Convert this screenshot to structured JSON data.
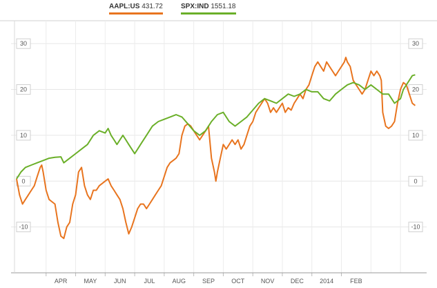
{
  "legend": [
    {
      "symbol": "AAPL:US",
      "value": "431.72",
      "color": "#e8741e"
    },
    {
      "symbol": "SPX:IND",
      "value": "1551.18",
      "color": "#6aaf28"
    }
  ],
  "chart_data": {
    "type": "line",
    "title": "",
    "xlabel": "",
    "ylabel": "",
    "x_axis_labels": [
      "APR",
      "MAY",
      "JUN",
      "JUL",
      "AUG",
      "SEP",
      "OCT",
      "NOV",
      "DEC",
      "2014",
      "FEB"
    ],
    "y_ticks": [
      30,
      20,
      10,
      0,
      -10
    ],
    "ylim": [
      -20,
      35
    ],
    "grid": true,
    "legend_position": "top",
    "x_unit": "months elapsed from start of series",
    "series": [
      {
        "name": "AAPL:US",
        "color": "#e8741e",
        "points": [
          [
            0.0,
            0.5
          ],
          [
            0.1,
            -3
          ],
          [
            0.2,
            -5
          ],
          [
            0.3,
            -4
          ],
          [
            0.4,
            -3
          ],
          [
            0.5,
            -2
          ],
          [
            0.6,
            -1
          ],
          [
            0.7,
            1
          ],
          [
            0.8,
            3
          ],
          [
            0.85,
            3.5
          ],
          [
            0.9,
            2
          ],
          [
            1.0,
            -2
          ],
          [
            1.1,
            -4
          ],
          [
            1.2,
            -4.5
          ],
          [
            1.3,
            -5
          ],
          [
            1.4,
            -9
          ],
          [
            1.5,
            -12
          ],
          [
            1.6,
            -12.5
          ],
          [
            1.7,
            -10
          ],
          [
            1.8,
            -9
          ],
          [
            1.9,
            -5
          ],
          [
            2.0,
            -3
          ],
          [
            2.1,
            2
          ],
          [
            2.2,
            3
          ],
          [
            2.3,
            -1
          ],
          [
            2.4,
            -3
          ],
          [
            2.5,
            -4
          ],
          [
            2.6,
            -2
          ],
          [
            2.7,
            -2
          ],
          [
            2.8,
            -1
          ],
          [
            3.0,
            0
          ],
          [
            3.1,
            0.5
          ],
          [
            3.2,
            -1
          ],
          [
            3.3,
            -2
          ],
          [
            3.4,
            -3
          ],
          [
            3.5,
            -4
          ],
          [
            3.6,
            -6
          ],
          [
            3.7,
            -9
          ],
          [
            3.8,
            -11.5
          ],
          [
            3.9,
            -10
          ],
          [
            4.0,
            -8
          ],
          [
            4.1,
            -6
          ],
          [
            4.2,
            -5
          ],
          [
            4.3,
            -5
          ],
          [
            4.4,
            -6
          ],
          [
            4.5,
            -5
          ],
          [
            4.6,
            -4
          ],
          [
            4.7,
            -3
          ],
          [
            4.8,
            -2
          ],
          [
            4.9,
            -1
          ],
          [
            5.0,
            1
          ],
          [
            5.1,
            3
          ],
          [
            5.2,
            4
          ],
          [
            5.3,
            4.5
          ],
          [
            5.4,
            5
          ],
          [
            5.5,
            6
          ],
          [
            5.6,
            10
          ],
          [
            5.7,
            12
          ],
          [
            5.8,
            12.5
          ],
          [
            5.9,
            12
          ],
          [
            6.0,
            11
          ],
          [
            6.1,
            10
          ],
          [
            6.2,
            9
          ],
          [
            6.3,
            10
          ],
          [
            6.4,
            11
          ],
          [
            6.5,
            12
          ],
          [
            6.6,
            5
          ],
          [
            6.7,
            2
          ],
          [
            6.75,
            0
          ],
          [
            6.8,
            2
          ],
          [
            6.9,
            5
          ],
          [
            7.0,
            8
          ],
          [
            7.1,
            7
          ],
          [
            7.2,
            8
          ],
          [
            7.3,
            9
          ],
          [
            7.4,
            8
          ],
          [
            7.5,
            9
          ],
          [
            7.6,
            7
          ],
          [
            7.7,
            8
          ],
          [
            7.8,
            10
          ],
          [
            7.9,
            12
          ],
          [
            8.0,
            13
          ],
          [
            8.1,
            15
          ],
          [
            8.2,
            16
          ],
          [
            8.3,
            17
          ],
          [
            8.4,
            18
          ],
          [
            8.5,
            17
          ],
          [
            8.6,
            15
          ],
          [
            8.7,
            16
          ],
          [
            8.8,
            15
          ],
          [
            8.9,
            16
          ],
          [
            9.0,
            17
          ],
          [
            9.1,
            15
          ],
          [
            9.2,
            16
          ],
          [
            9.3,
            15.5
          ],
          [
            9.4,
            17
          ],
          [
            9.5,
            18
          ],
          [
            9.6,
            19
          ],
          [
            9.7,
            18
          ],
          [
            9.8,
            20
          ],
          [
            9.9,
            21
          ],
          [
            10.0,
            23
          ],
          [
            10.1,
            25
          ],
          [
            10.2,
            26
          ],
          [
            10.3,
            25
          ],
          [
            10.4,
            24
          ],
          [
            10.5,
            26
          ],
          [
            10.6,
            25
          ],
          [
            10.7,
            24
          ],
          [
            10.8,
            23
          ],
          [
            10.9,
            24
          ],
          [
            11.0,
            25
          ],
          [
            11.1,
            26
          ],
          [
            11.15,
            27
          ],
          [
            11.2,
            26
          ],
          [
            11.3,
            25
          ],
          [
            11.4,
            22
          ],
          [
            11.5,
            21
          ],
          [
            11.6,
            20
          ],
          [
            11.7,
            19
          ],
          [
            11.8,
            20
          ],
          [
            11.9,
            22
          ],
          [
            12.0,
            24
          ],
          [
            12.1,
            23
          ],
          [
            12.2,
            24
          ],
          [
            12.3,
            23
          ],
          [
            12.35,
            22
          ],
          [
            12.4,
            15
          ],
          [
            12.5,
            12
          ],
          [
            12.6,
            11.5
          ],
          [
            12.7,
            12
          ],
          [
            12.8,
            13
          ],
          [
            12.9,
            17
          ],
          [
            13.0,
            20
          ],
          [
            13.1,
            21.5
          ],
          [
            13.2,
            21
          ],
          [
            13.3,
            19
          ],
          [
            13.4,
            17
          ],
          [
            13.5,
            16.5
          ]
        ]
      },
      {
        "name": "SPX:IND",
        "color": "#6aaf28",
        "points": [
          [
            0.0,
            0.5
          ],
          [
            0.15,
            2
          ],
          [
            0.3,
            3
          ],
          [
            0.5,
            3.5
          ],
          [
            0.7,
            4
          ],
          [
            0.9,
            4.5
          ],
          [
            1.1,
            5
          ],
          [
            1.3,
            5.2
          ],
          [
            1.5,
            5.3
          ],
          [
            1.6,
            4
          ],
          [
            1.8,
            5
          ],
          [
            2.0,
            6
          ],
          [
            2.2,
            7
          ],
          [
            2.4,
            8
          ],
          [
            2.6,
            10
          ],
          [
            2.8,
            11
          ],
          [
            3.0,
            10.5
          ],
          [
            3.1,
            11.5
          ],
          [
            3.2,
            10
          ],
          [
            3.3,
            9
          ],
          [
            3.4,
            8
          ],
          [
            3.5,
            9
          ],
          [
            3.6,
            10
          ],
          [
            3.7,
            9
          ],
          [
            3.8,
            8
          ],
          [
            3.9,
            7
          ],
          [
            4.0,
            6
          ],
          [
            4.1,
            7
          ],
          [
            4.2,
            8
          ],
          [
            4.4,
            10
          ],
          [
            4.6,
            12
          ],
          [
            4.8,
            13
          ],
          [
            5.0,
            13.5
          ],
          [
            5.2,
            14
          ],
          [
            5.4,
            14.5
          ],
          [
            5.6,
            14
          ],
          [
            5.8,
            12.5
          ],
          [
            6.0,
            11
          ],
          [
            6.2,
            10
          ],
          [
            6.4,
            11
          ],
          [
            6.6,
            13
          ],
          [
            6.8,
            14.5
          ],
          [
            7.0,
            15
          ],
          [
            7.2,
            13
          ],
          [
            7.4,
            12
          ],
          [
            7.6,
            13
          ],
          [
            7.8,
            14
          ],
          [
            8.0,
            15.5
          ],
          [
            8.2,
            17
          ],
          [
            8.4,
            18
          ],
          [
            8.6,
            17.5
          ],
          [
            8.8,
            17
          ],
          [
            9.0,
            18
          ],
          [
            9.2,
            19
          ],
          [
            9.4,
            18.5
          ],
          [
            9.6,
            19
          ],
          [
            9.8,
            20
          ],
          [
            10.0,
            19.5
          ],
          [
            10.2,
            19.5
          ],
          [
            10.4,
            18
          ],
          [
            10.6,
            17.5
          ],
          [
            10.8,
            19
          ],
          [
            11.0,
            20
          ],
          [
            11.2,
            21
          ],
          [
            11.4,
            21.5
          ],
          [
            11.6,
            21
          ],
          [
            11.8,
            20
          ],
          [
            12.0,
            21
          ],
          [
            12.2,
            20
          ],
          [
            12.4,
            19
          ],
          [
            12.6,
            19
          ],
          [
            12.7,
            18
          ],
          [
            12.8,
            17
          ],
          [
            12.9,
            17.5
          ],
          [
            13.0,
            18
          ],
          [
            13.1,
            20
          ],
          [
            13.2,
            21
          ],
          [
            13.3,
            22
          ],
          [
            13.4,
            23
          ],
          [
            13.5,
            23.2
          ]
        ]
      }
    ]
  }
}
